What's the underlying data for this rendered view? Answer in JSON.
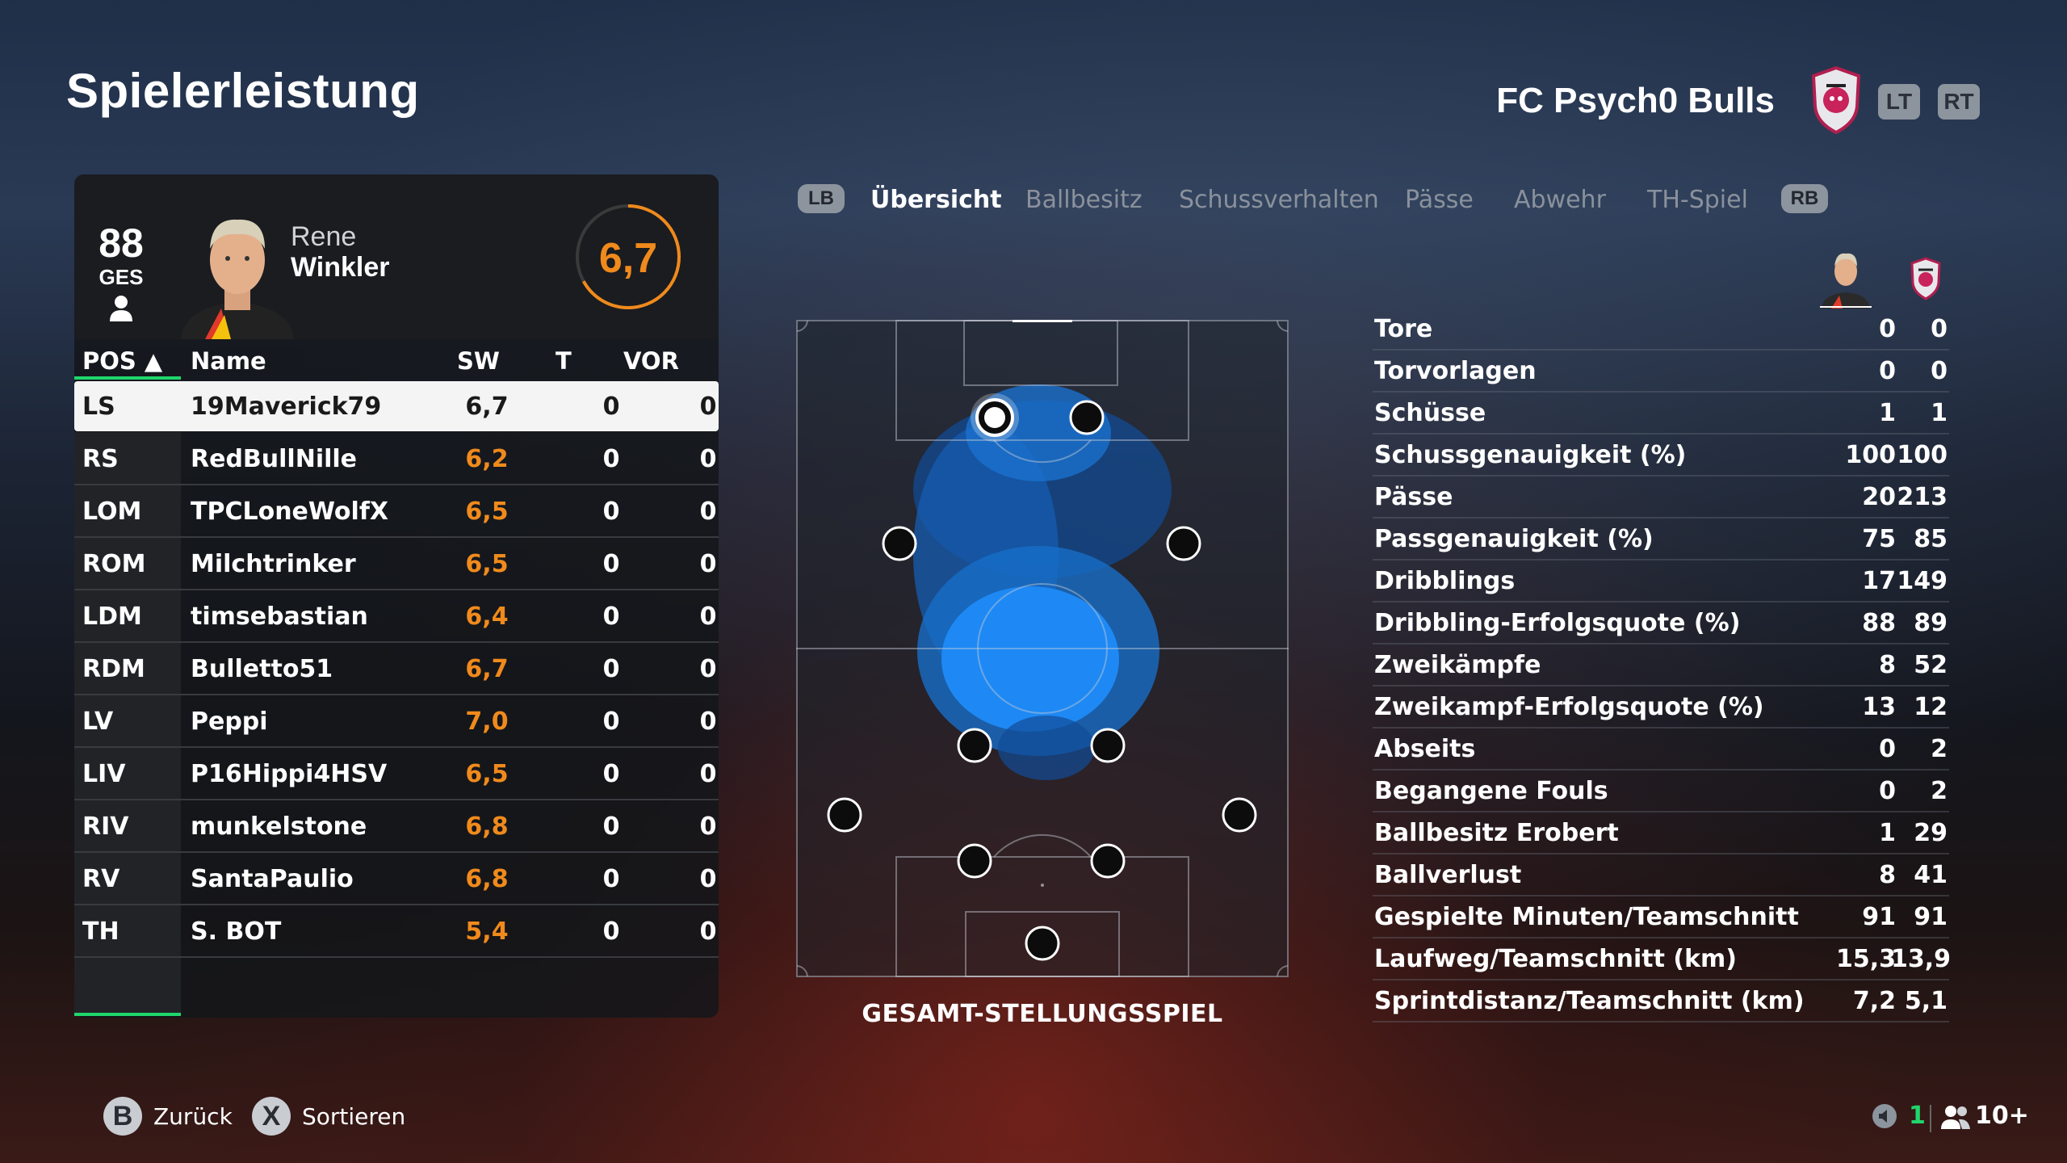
{
  "header": {
    "title": "Spielerleistung",
    "team_name": "FC Psych0 Bulls",
    "lt": "LT",
    "rt": "RT"
  },
  "player": {
    "overall": "88",
    "overall_label": "GES",
    "first_name": "Rene",
    "last_name": "Winkler",
    "rating": "6,7",
    "rating_fraction": 0.67
  },
  "table": {
    "headers": {
      "pos": "POS ▲",
      "name": "Name",
      "sw": "SW",
      "t": "T",
      "vor": "VOR"
    },
    "rows": [
      {
        "pos": "LS",
        "name": "19Maverick79",
        "sw": "6,7",
        "t": "0",
        "vor": "0"
      },
      {
        "pos": "RS",
        "name": "RedBullNille",
        "sw": "6,2",
        "t": "0",
        "vor": "0"
      },
      {
        "pos": "LOM",
        "name": "TPCLoneWolfX",
        "sw": "6,5",
        "t": "0",
        "vor": "0"
      },
      {
        "pos": "ROM",
        "name": "Milchtrinker",
        "sw": "6,5",
        "t": "0",
        "vor": "0"
      },
      {
        "pos": "LDM",
        "name": "timsebastian",
        "sw": "6,4",
        "t": "0",
        "vor": "0"
      },
      {
        "pos": "RDM",
        "name": "Bulletto51",
        "sw": "6,7",
        "t": "0",
        "vor": "0"
      },
      {
        "pos": "LV",
        "name": "Peppi",
        "sw": "7,0",
        "t": "0",
        "vor": "0"
      },
      {
        "pos": "LIV",
        "name": "P16Hippi4HSV",
        "sw": "6,5",
        "t": "0",
        "vor": "0"
      },
      {
        "pos": "RIV",
        "name": "munkelstone",
        "sw": "6,8",
        "t": "0",
        "vor": "0"
      },
      {
        "pos": "RV",
        "name": "SantaPaulio",
        "sw": "6,8",
        "t": "0",
        "vor": "0"
      },
      {
        "pos": "TH",
        "name": "S. BOT",
        "sw": "5,4",
        "t": "0",
        "vor": "0"
      }
    ]
  },
  "tabs": {
    "lb": "LB",
    "rb": "RB",
    "items": [
      "Übersicht",
      "Ballbesitz",
      "Schussverhalten",
      "Pässe",
      "Abwehr",
      "TH-Spiel"
    ]
  },
  "pitch": {
    "caption": "GESAMT-STELLUNGSSPIEL"
  },
  "stats": [
    {
      "label": "Tore",
      "player": "0",
      "team": "0"
    },
    {
      "label": "Torvorlagen",
      "player": "0",
      "team": "0"
    },
    {
      "label": "Schüsse",
      "player": "1",
      "team": "1"
    },
    {
      "label": "Schussgenauigkeit (%)",
      "player": "100",
      "team": "100"
    },
    {
      "label": "Pässe",
      "player": "20",
      "team": "213"
    },
    {
      "label": "Passgenauigkeit (%)",
      "player": "75",
      "team": "85"
    },
    {
      "label": "Dribblings",
      "player": "17",
      "team": "149"
    },
    {
      "label": "Dribbling-Erfolgsquote (%)",
      "player": "88",
      "team": "89"
    },
    {
      "label": "Zweikämpfe",
      "player": "8",
      "team": "52"
    },
    {
      "label": "Zweikampf-Erfolgsquote (%)",
      "player": "13",
      "team": "12"
    },
    {
      "label": "Abseits",
      "player": "0",
      "team": "2"
    },
    {
      "label": "Begangene Fouls",
      "player": "0",
      "team": "2"
    },
    {
      "label": "Ballbesitz Erobert",
      "player": "1",
      "team": "29"
    },
    {
      "label": "Ballverlust",
      "player": "8",
      "team": "41"
    },
    {
      "label": "Gespielte Minuten/Teamschnitt",
      "player": "91",
      "team": "91"
    },
    {
      "label": "Laufweg/Teamschnitt (km)",
      "player": "15,3",
      "team": "13,9"
    },
    {
      "label": "Sprintdistanz/Teamschnitt (km)",
      "player": "7,2",
      "team": "5,1"
    }
  ],
  "footer": {
    "back_btn": "B",
    "back_label": "Zurück",
    "sort_btn": "X",
    "sort_label": "Sortieren",
    "count_a": "1",
    "count_b": "10+"
  },
  "colors": {
    "accent_orange": "#f08a1c",
    "accent_green": "#1fd66b",
    "heat_blue": "#1e8fff"
  }
}
